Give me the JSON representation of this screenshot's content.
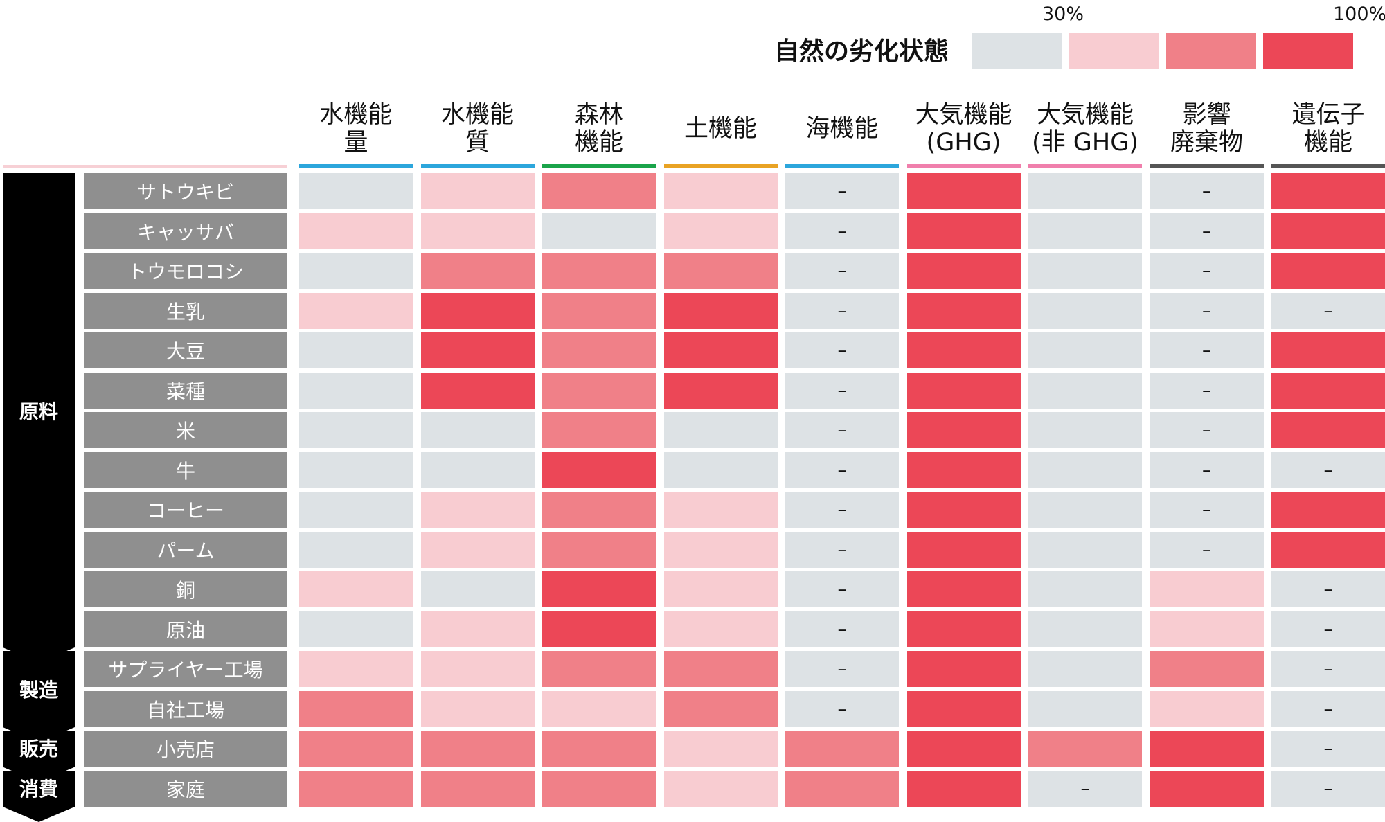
{
  "chart_data": {
    "type": "heatmap",
    "legend": {
      "title": "自然の劣化状態",
      "tick_labels": [
        "30%",
        "100%"
      ],
      "levels": [
        {
          "level": 1,
          "color": "#dde2e5"
        },
        {
          "level": 2,
          "color": "#f8ccd1"
        },
        {
          "level": 3,
          "color": "#f08088"
        },
        {
          "level": 4,
          "color": "#ec4757"
        }
      ]
    },
    "na_label": "–",
    "columns": [
      {
        "label": "水機能\n量",
        "color": "#2ca6dc"
      },
      {
        "label": "水機能\n質",
        "color": "#2ca6dc"
      },
      {
        "label": "森林\n機能",
        "color": "#1aa44a"
      },
      {
        "label": "土機能",
        "color": "#e9a324"
      },
      {
        "label": "海機能",
        "color": "#2ca6dc"
      },
      {
        "label": "大気機能\n(GHG)",
        "color": "#f07fac"
      },
      {
        "label": "大気機能\n(非 GHG)",
        "color": "#f07fac"
      },
      {
        "label": "影響\n廃棄物",
        "color": "#555555"
      },
      {
        "label": "遺伝子\n機能",
        "color": "#555555"
      }
    ],
    "stages": [
      {
        "label": "原料",
        "first_row": 0,
        "last_row": 11
      },
      {
        "label": "製造",
        "first_row": 12,
        "last_row": 13
      },
      {
        "label": "販売",
        "first_row": 14,
        "last_row": 14
      },
      {
        "label": "消費",
        "first_row": 15,
        "last_row": 15
      }
    ],
    "rows": [
      {
        "label": "サトウキビ",
        "values": [
          1,
          2,
          3,
          2,
          0,
          4,
          1,
          0,
          4
        ]
      },
      {
        "label": "キャッサバ",
        "values": [
          2,
          2,
          1,
          2,
          0,
          4,
          1,
          0,
          4
        ]
      },
      {
        "label": "トウモロコシ",
        "values": [
          1,
          3,
          3,
          3,
          0,
          4,
          1,
          0,
          4
        ]
      },
      {
        "label": "生乳",
        "values": [
          2,
          4,
          3,
          4,
          0,
          4,
          1,
          0,
          0
        ]
      },
      {
        "label": "大豆",
        "values": [
          1,
          4,
          3,
          4,
          0,
          4,
          1,
          0,
          4
        ]
      },
      {
        "label": "菜種",
        "values": [
          1,
          4,
          3,
          4,
          0,
          4,
          1,
          0,
          4
        ]
      },
      {
        "label": "米",
        "values": [
          1,
          1,
          3,
          1,
          0,
          4,
          1,
          0,
          4
        ]
      },
      {
        "label": "牛",
        "values": [
          1,
          1,
          4,
          1,
          0,
          4,
          1,
          0,
          0
        ]
      },
      {
        "label": "コーヒー",
        "values": [
          1,
          2,
          3,
          2,
          0,
          4,
          1,
          0,
          4
        ]
      },
      {
        "label": "パーム",
        "values": [
          1,
          2,
          3,
          2,
          0,
          4,
          1,
          0,
          4
        ]
      },
      {
        "label": "銅",
        "values": [
          2,
          1,
          4,
          2,
          0,
          4,
          1,
          2,
          0
        ]
      },
      {
        "label": "原油",
        "values": [
          1,
          2,
          4,
          2,
          0,
          4,
          1,
          2,
          0
        ]
      },
      {
        "label": "サプライヤー工場",
        "values": [
          2,
          2,
          3,
          3,
          0,
          4,
          1,
          3,
          0
        ]
      },
      {
        "label": "自社工場",
        "values": [
          3,
          2,
          2,
          3,
          0,
          4,
          1,
          2,
          0
        ]
      },
      {
        "label": "小売店",
        "values": [
          3,
          3,
          3,
          2,
          3,
          4,
          3,
          4,
          0
        ]
      },
      {
        "label": "家庭",
        "values": [
          3,
          3,
          3,
          2,
          3,
          4,
          0,
          4,
          0
        ]
      }
    ]
  }
}
